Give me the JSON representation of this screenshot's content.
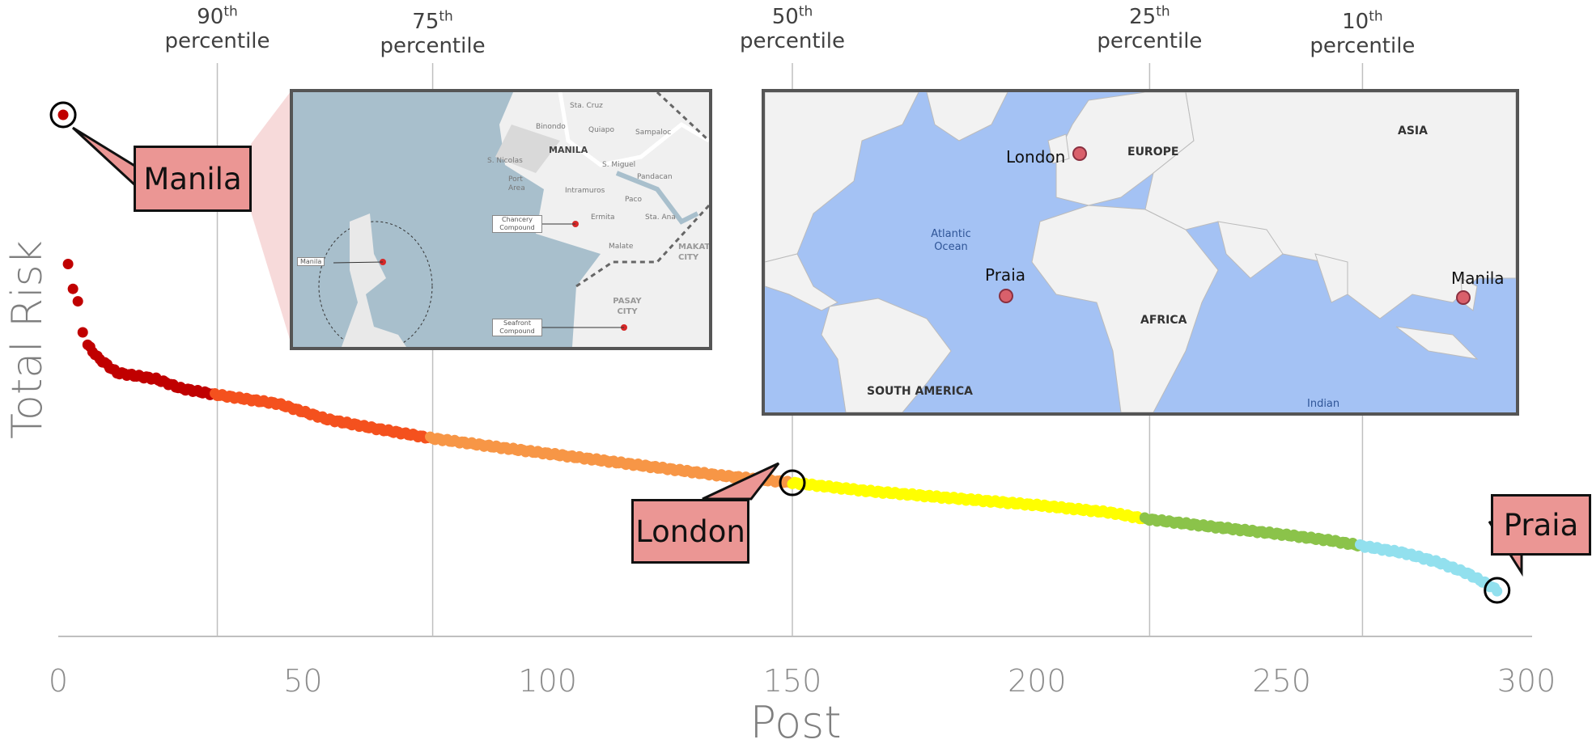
{
  "chart_data": {
    "type": "scatter",
    "xlabel": "Post",
    "ylabel": "Total Risk",
    "xlim": [
      0,
      300
    ],
    "x_ticks": [
      "0",
      "50",
      "100",
      "150",
      "200",
      "250",
      "300"
    ],
    "percentile_lines": [
      {
        "num": "90",
        "sup": "th",
        "word": "percentile",
        "x": 32.5
      },
      {
        "num": "75",
        "sup": "th",
        "word": "percentile",
        "x": 76.5
      },
      {
        "num": "50",
        "sup": "th",
        "word": "percentile",
        "x": 150
      },
      {
        "num": "25",
        "sup": "th",
        "word": "percentile",
        "x": 223
      },
      {
        "num": "10",
        "sup": "th",
        "word": "percentile",
        "x": 266.5
      }
    ],
    "color_bands": [
      {
        "from": 0,
        "to": 32,
        "color": "#c00000"
      },
      {
        "from": 32,
        "to": 76,
        "color": "#f4511e"
      },
      {
        "from": 76,
        "to": 150,
        "color": "#f79646"
      },
      {
        "from": 150,
        "to": 222,
        "color": "#ffff00"
      },
      {
        "from": 222,
        "to": 266,
        "color": "#8bc34a"
      },
      {
        "from": 266,
        "to": 295,
        "color": "#92e0ee"
      }
    ],
    "curve_points": [
      [
        1,
        1.0
      ],
      [
        2,
        0.76
      ],
      [
        3,
        0.72
      ],
      [
        4,
        0.7
      ],
      [
        5,
        0.65
      ],
      [
        6,
        0.63
      ],
      [
        8,
        0.61
      ],
      [
        12,
        0.585
      ],
      [
        20,
        0.575
      ],
      [
        25,
        0.56
      ],
      [
        32,
        0.55
      ],
      [
        45,
        0.535
      ],
      [
        55,
        0.51
      ],
      [
        65,
        0.495
      ],
      [
        76,
        0.48
      ],
      [
        90,
        0.465
      ],
      [
        105,
        0.45
      ],
      [
        120,
        0.435
      ],
      [
        135,
        0.42
      ],
      [
        150,
        0.408
      ],
      [
        165,
        0.395
      ],
      [
        180,
        0.385
      ],
      [
        200,
        0.372
      ],
      [
        215,
        0.36
      ],
      [
        222,
        0.35
      ],
      [
        235,
        0.338
      ],
      [
        250,
        0.325
      ],
      [
        260,
        0.315
      ],
      [
        266,
        0.307
      ],
      [
        275,
        0.295
      ],
      [
        282,
        0.28
      ],
      [
        288,
        0.262
      ],
      [
        292,
        0.245
      ],
      [
        294,
        0.235
      ]
    ],
    "highlighted": [
      {
        "name": "Manila",
        "x": 1,
        "y": 1.0
      },
      {
        "name": "London",
        "x": 150,
        "y": 0.408
      },
      {
        "name": "Praia",
        "x": 294,
        "y": 0.235
      }
    ]
  },
  "callouts": {
    "manila": "Manila",
    "london": "London",
    "praia": "Praia"
  },
  "inset_manila": {
    "labels": {
      "city": "MANILA",
      "sta_cruz": "Sta. Cruz",
      "binondo": "Binondo",
      "quiapo": "Quiapo",
      "sampaloc": "Sampaloc",
      "s_nicolas": "S. Nicolas",
      "s_miguel": "S. Miguel",
      "port_area": "Port Area",
      "intramuros": "Intramuros",
      "pandacan": "Pandacan",
      "paco": "Paco",
      "ermita": "Ermita",
      "sta_ana": "Sta. Ana",
      "malate": "Malate",
      "makati": "MAKATI CITY",
      "pasay": "PASAY CITY",
      "chancery": "Chancery Compound",
      "seafront": "Seafront Compound",
      "manila_marker": "Manila"
    },
    "colors": {
      "water": "#a8bfcc",
      "land": "#f1f1f1",
      "callout_fill": "#f6d3d3"
    }
  },
  "inset_world": {
    "labels": {
      "london": "London",
      "europe": "EUROPE",
      "asia": "ASIA",
      "atlantic": "Atlantic Ocean",
      "praia": "Praia",
      "manila": "Manila",
      "africa": "AFRICA",
      "south_america": "SOUTH AMERICA",
      "indian": "Indian"
    },
    "colors": {
      "ocean": "#a4c2f4",
      "land": "#f2f2f2",
      "marker": "#d9606b"
    }
  }
}
